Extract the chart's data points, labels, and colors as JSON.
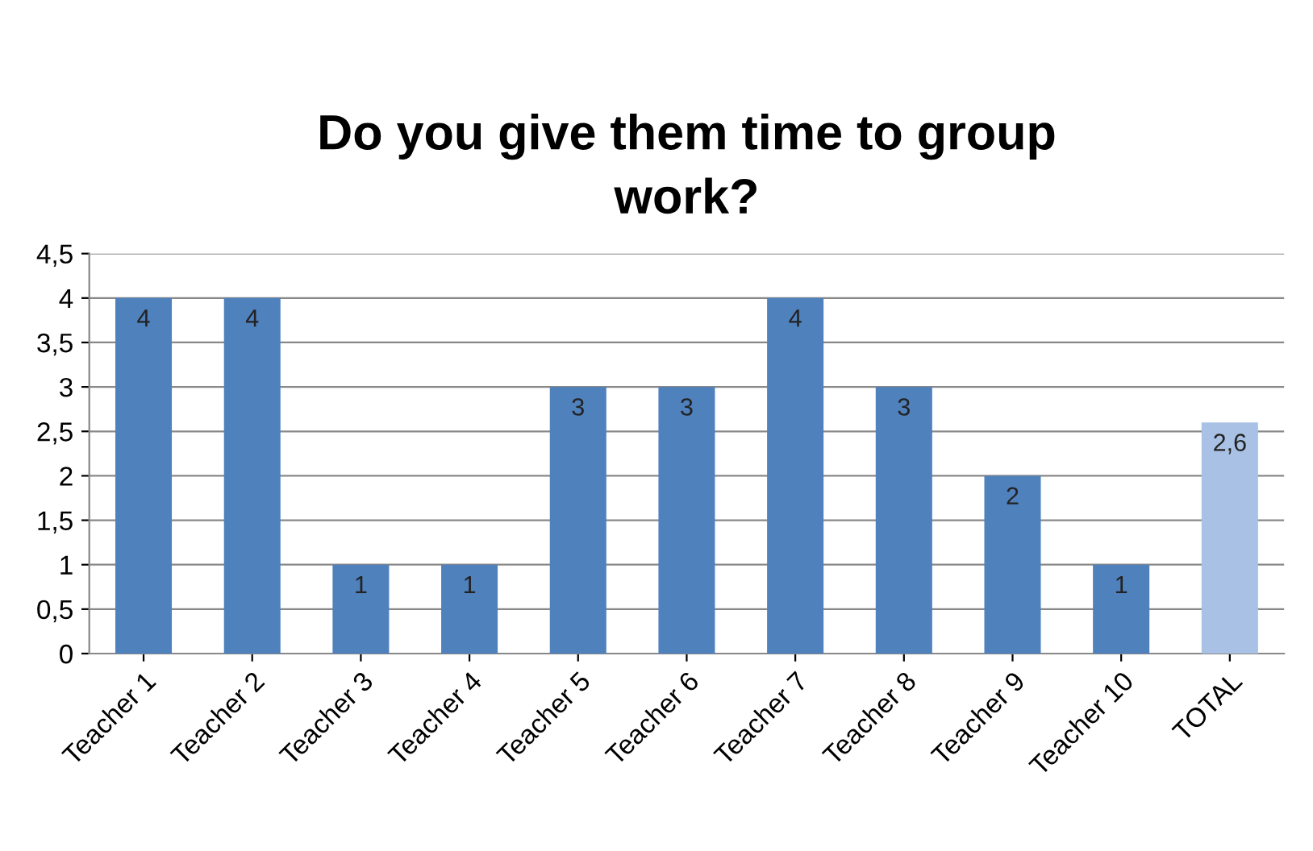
{
  "chart_data": {
    "type": "bar",
    "title": "Do you give them time to group\nwork?",
    "categories": [
      "Teacher 1",
      "Teacher 2",
      "Teacher 3",
      "Teacher 4",
      "Teacher 5",
      "Teacher 6",
      "Teacher 7",
      "Teacher 8",
      "Teacher 9",
      "Teacher 10",
      "TOTAL"
    ],
    "values": [
      4,
      4,
      1,
      1,
      3,
      3,
      4,
      3,
      2,
      1,
      2.6
    ],
    "colors": [
      "#4f81bd",
      "#4f81bd",
      "#4f81bd",
      "#4f81bd",
      "#4f81bd",
      "#4f81bd",
      "#4f81bd",
      "#4f81bd",
      "#4f81bd",
      "#4f81bd",
      "#a9c1e4"
    ],
    "value_labels": [
      "4",
      "4",
      "1",
      "1",
      "3",
      "3",
      "4",
      "3",
      "2",
      "1",
      "2,6"
    ],
    "ylim": [
      0,
      4.5
    ],
    "yticks": [
      0,
      {
        "value": 0.5,
        "label": "0,5"
      },
      1,
      {
        "value": 1.5,
        "label": "1,5"
      },
      2,
      {
        "value": 2.5,
        "label": "2,5"
      },
      3,
      {
        "value": 3.5,
        "label": "3,5"
      },
      4,
      {
        "value": 4.5,
        "label": "4,5"
      }
    ],
    "grid": "y"
  }
}
